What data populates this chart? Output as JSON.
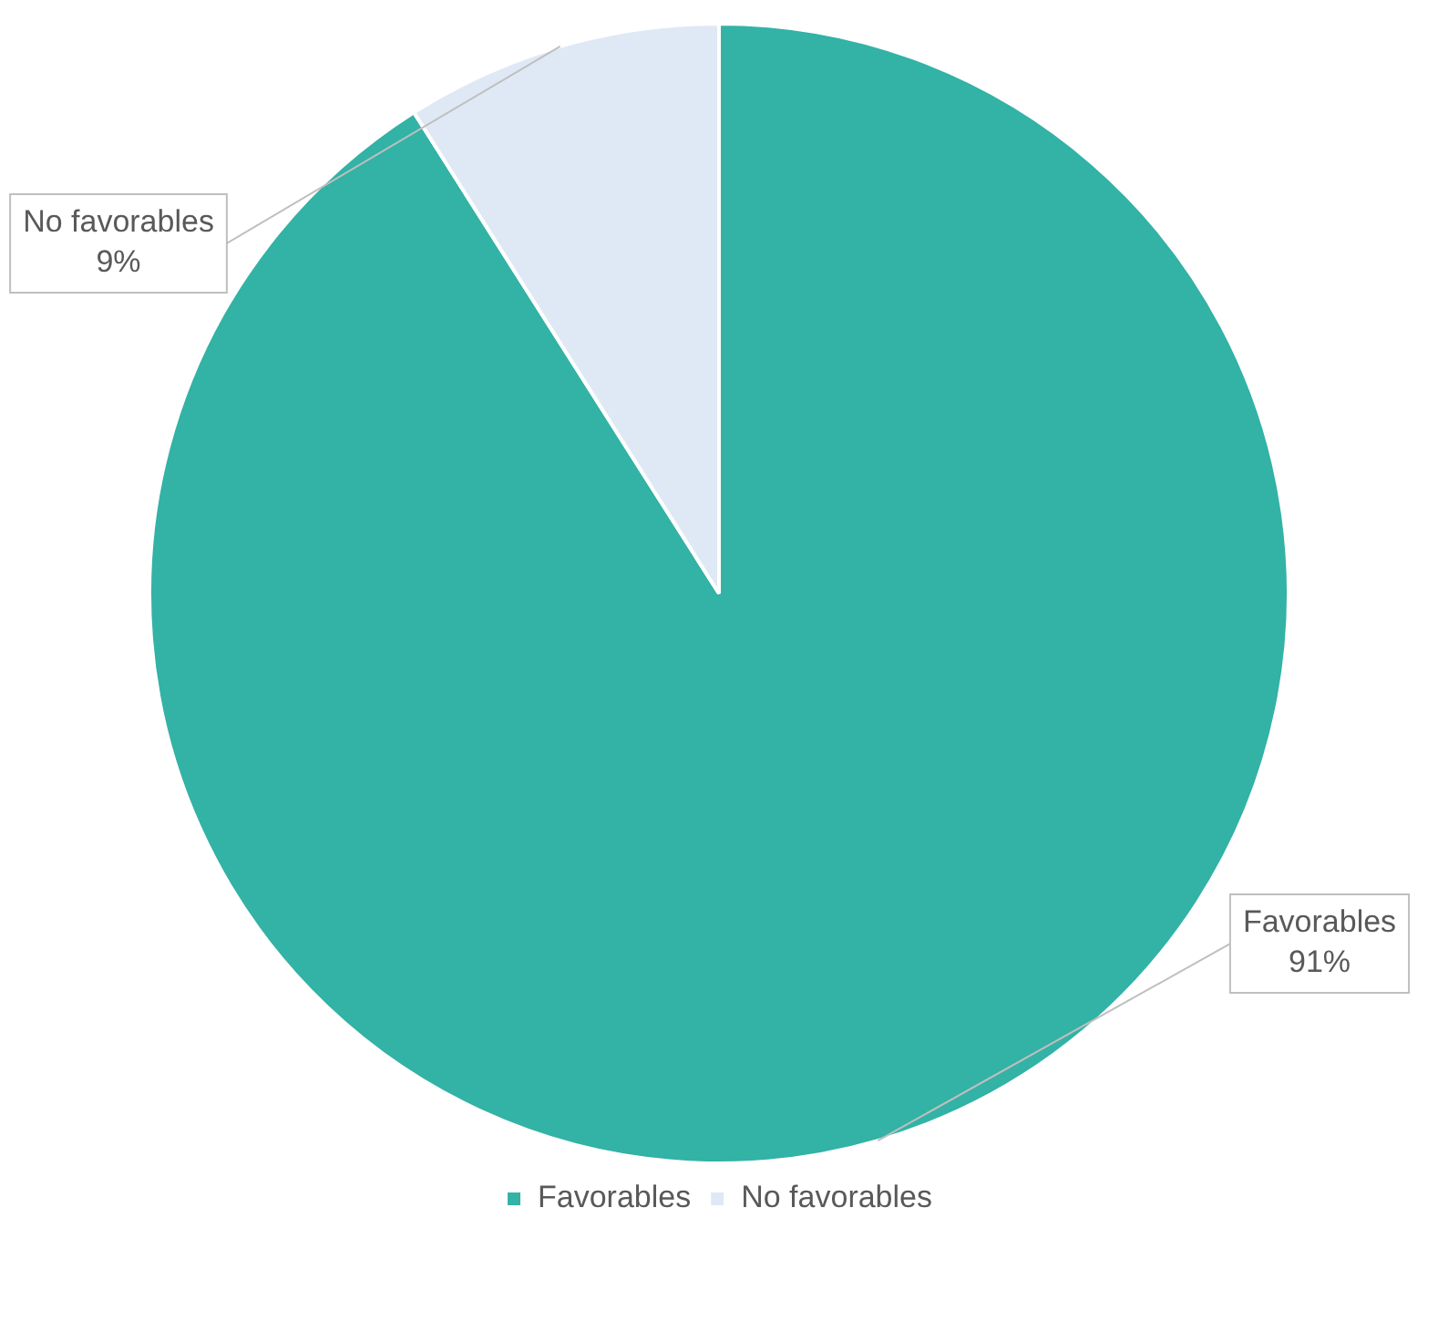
{
  "chart_data": {
    "type": "pie",
    "categories": [
      "Favorables",
      "No favorables"
    ],
    "values": [
      91,
      9
    ],
    "colors": [
      "#33b2a6",
      "#dfe9f5"
    ],
    "value_labels": [
      "91%",
      "9%"
    ],
    "legend": "bottom"
  }
}
